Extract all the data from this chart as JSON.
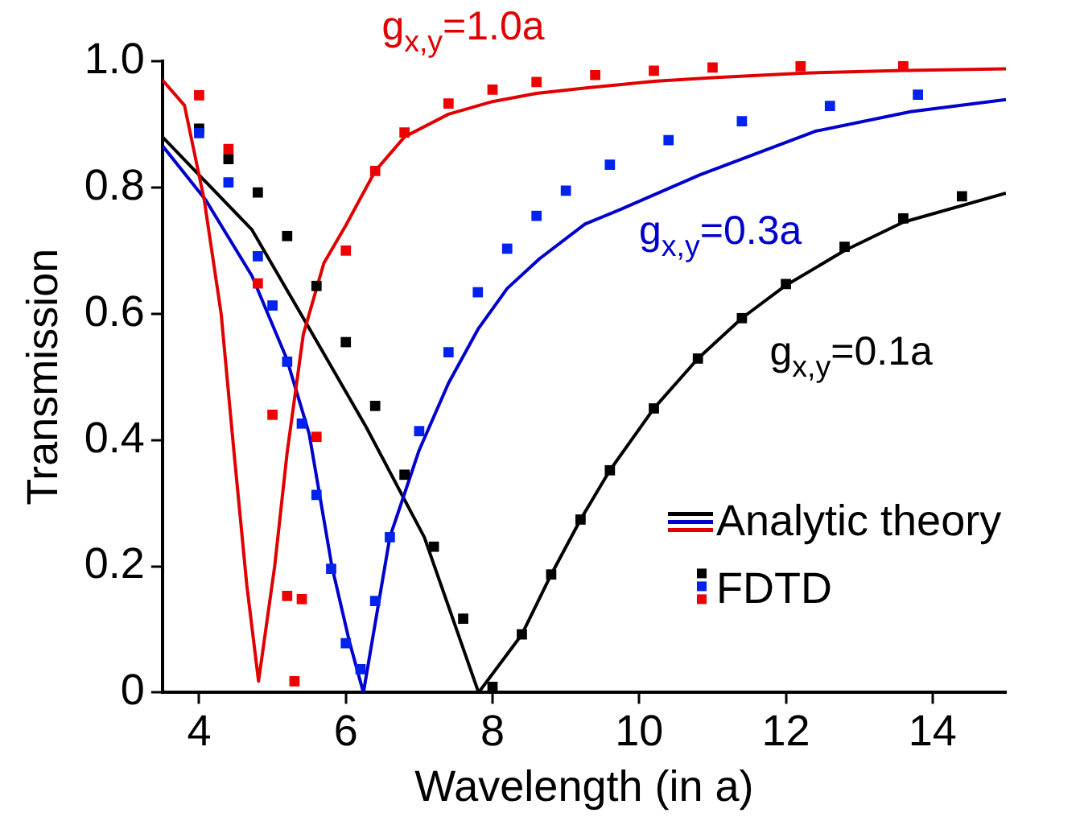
{
  "chart_data": {
    "type": "line",
    "xlabel": "Wavelength (in a)",
    "ylabel": "Transmission",
    "xlim": [
      3.5,
      15
    ],
    "ylim": [
      0,
      1
    ],
    "xticks": [
      4,
      6,
      8,
      10,
      12,
      14
    ],
    "yticks": [
      0,
      0.2,
      0.4,
      0.6,
      0.8,
      {
        "value": 1,
        "label": "1.0"
      }
    ],
    "grid": false,
    "legend": "bottom right",
    "line_style": "solid",
    "annotations": [
      "g$_{x,y}$=1.0a",
      "g$_{x,y}$=0.3a",
      "g$_{x,y}$=0.1a"
    ],
    "series": [
      {
        "name": "Analytic theory",
        "color": "#000000",
        "x": [
          3.5,
          4.72,
          5.5,
          6.28,
          7.07,
          7.81,
          8.4,
          8.8,
          9.2,
          9.6,
          10.2,
          10.8,
          11.4,
          12.0,
          12.8,
          13.6,
          15
        ],
        "values": [
          0.88,
          0.733,
          0.577,
          0.42,
          0.246,
          0.0,
          0.092,
          0.187,
          0.274,
          0.352,
          0.45,
          0.529,
          0.593,
          0.645,
          0.7,
          0.745,
          0.791
        ]
      },
      {
        "color": "#0000cc",
        "x": [
          3.5,
          4.09,
          4.72,
          5.19,
          5.5,
          5.81,
          6.05,
          6.24,
          6.6,
          7.0,
          7.4,
          7.81,
          8.2,
          8.64,
          9.26,
          9.74,
          10.83,
          12.4,
          13.7,
          15
        ],
        "values": [
          0.866,
          0.78,
          0.66,
          0.53,
          0.41,
          0.2,
          0.08,
          0.0,
          0.246,
          0.384,
          0.49,
          0.577,
          0.64,
          0.687,
          0.742,
          0.765,
          0.82,
          0.889,
          0.92,
          0.939
        ]
      },
      {
        "color": "#e00000",
        "x": [
          3.5,
          3.8,
          4.07,
          4.3,
          4.48,
          4.65,
          4.81,
          5.03,
          5.2,
          5.42,
          5.7,
          6.0,
          6.4,
          6.8,
          7.4,
          8.0,
          8.6,
          9.3,
          10.2,
          11.0,
          12.2,
          13.5,
          15
        ],
        "values": [
          0.97,
          0.93,
          0.78,
          0.6,
          0.375,
          0.17,
          0.018,
          0.2,
          0.38,
          0.567,
          0.68,
          0.74,
          0.826,
          0.88,
          0.916,
          0.936,
          0.949,
          0.958,
          0.968,
          0.974,
          0.981,
          0.985,
          0.988
        ]
      },
      {
        "name": "FDTD",
        "type": "scatter",
        "marker": "square",
        "color": "#000000",
        "x": [
          4.0,
          4.4,
          4.8,
          5.2,
          5.6,
          6.0,
          6.4,
          6.8,
          7.2,
          7.6,
          8.0,
          8.4,
          8.8,
          9.2,
          9.6,
          10.2,
          10.8,
          11.4,
          12.0,
          12.8,
          13.6,
          14.4
        ],
        "values": [
          0.893,
          0.845,
          0.792,
          0.723,
          0.644,
          0.555,
          0.454,
          0.345,
          0.231,
          0.117,
          0.009,
          0.092,
          0.187,
          0.274,
          0.352,
          0.45,
          0.529,
          0.593,
          0.647,
          0.706,
          0.751,
          0.786
        ]
      },
      {
        "type": "scatter",
        "marker": "square",
        "color": "#0022ee",
        "x": [
          4.0,
          4.4,
          4.8,
          5.0,
          5.2,
          5.4,
          5.6,
          5.8,
          6.0,
          6.2,
          6.4,
          6.6,
          7.0,
          7.4,
          7.8,
          8.2,
          8.6,
          9.0,
          9.6,
          10.4,
          11.4,
          12.6,
          13.8
        ],
        "values": [
          0.886,
          0.808,
          0.691,
          0.613,
          0.524,
          0.426,
          0.313,
          0.196,
          0.078,
          0.037,
          0.145,
          0.246,
          0.414,
          0.539,
          0.634,
          0.703,
          0.755,
          0.795,
          0.836,
          0.875,
          0.905,
          0.929,
          0.947
        ]
      },
      {
        "type": "scatter",
        "marker": "square",
        "color": "#ee0000",
        "x": [
          4.0,
          4.4,
          4.8,
          5.0,
          5.2,
          5.3,
          5.4,
          5.6,
          6.0,
          6.4,
          6.8,
          7.4,
          8.0,
          8.6,
          9.4,
          10.2,
          11.0,
          12.2,
          13.6
        ],
        "values": [
          0.946,
          0.861,
          0.648,
          0.44,
          0.153,
          0.018,
          0.148,
          0.405,
          0.7,
          0.826,
          0.887,
          0.933,
          0.955,
          0.967,
          0.978,
          0.985,
          0.99,
          0.992,
          0.994
        ]
      }
    ]
  }
}
